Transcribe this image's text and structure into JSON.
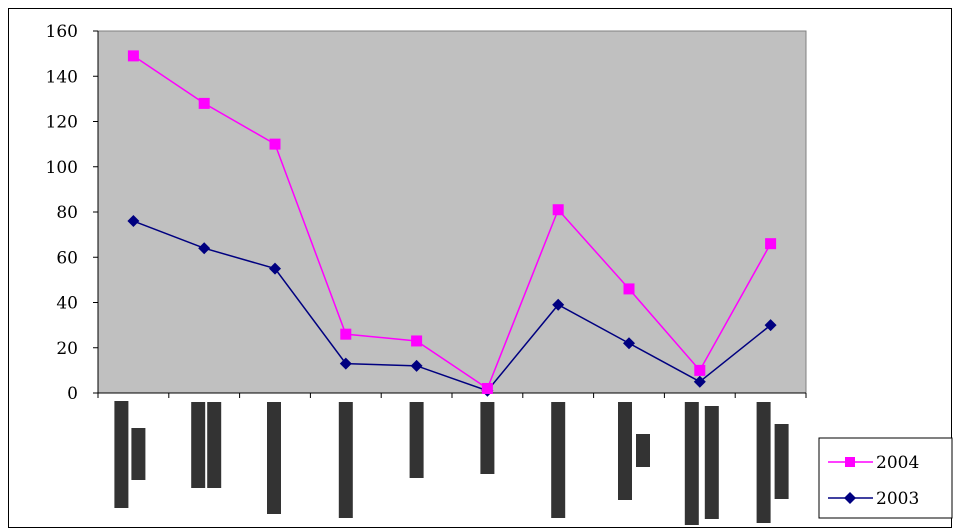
{
  "chart_data": {
    "type": "line",
    "title": "",
    "xlabel": "",
    "ylabel": "",
    "ylim": [
      0,
      160
    ],
    "yticks": [
      0,
      20,
      40,
      60,
      80,
      100,
      120,
      140,
      160
    ],
    "grid": false,
    "plot_background": "#C0C0C0",
    "legend_position": "bottom-right",
    "categories": [
      "",
      "",
      "",
      "",
      "",
      "",
      "",
      "",
      "",
      ""
    ],
    "category_bar_rows": [
      {
        "rows": 2
      },
      {
        "rows": 2
      },
      {
        "rows": 1
      },
      {
        "rows": 1
      },
      {
        "rows": 1
      },
      {
        "rows": 1
      },
      {
        "rows": 1
      },
      {
        "rows": 2
      },
      {
        "rows": 2
      },
      {
        "rows": 2
      }
    ],
    "series": [
      {
        "name": "2004",
        "color": "#FF00FF",
        "marker": "square",
        "values": [
          149,
          128,
          110,
          26,
          23,
          2,
          81,
          46,
          10,
          66
        ]
      },
      {
        "name": "2003",
        "color": "#000080",
        "marker": "diamond",
        "values": [
          76,
          64,
          55,
          13,
          12,
          1,
          39,
          22,
          5,
          30
        ]
      }
    ]
  }
}
